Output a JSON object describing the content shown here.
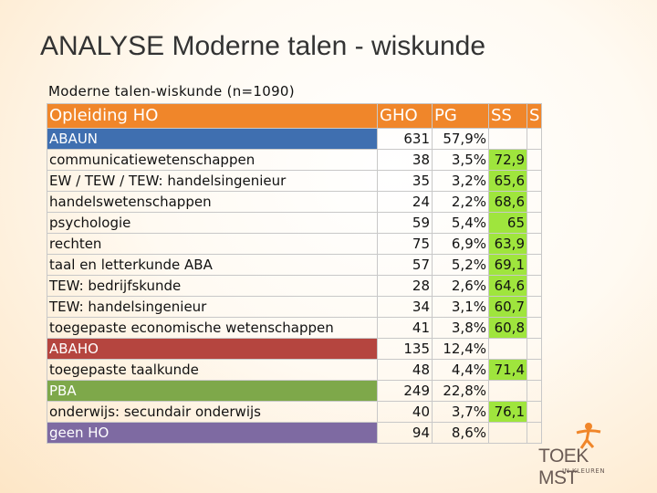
{
  "slide": {
    "title": "ANALYSE Moderne talen - wiskunde"
  },
  "table": {
    "caption": "Moderne talen-wiskunde (n=1090)",
    "headers": [
      "Opleiding HO",
      "GHO",
      "PG",
      "SS",
      "S"
    ],
    "rows": [
      {
        "label": "ABAUN",
        "gho": "631",
        "pg": "57,9%",
        "ss": "",
        "category": "blue"
      },
      {
        "label": "communicatiewetenschappen",
        "gho": "38",
        "pg": "3,5%",
        "ss": "72,9",
        "category": ""
      },
      {
        "label": "EW / TEW / TEW: handelsingenieur",
        "gho": "35",
        "pg": "3,2%",
        "ss": "65,6",
        "category": ""
      },
      {
        "label": "handelswetenschappen",
        "gho": "24",
        "pg": "2,2%",
        "ss": "68,6",
        "category": ""
      },
      {
        "label": "psychologie",
        "gho": "59",
        "pg": "5,4%",
        "ss": "65",
        "category": ""
      },
      {
        "label": "rechten",
        "gho": "75",
        "pg": "6,9%",
        "ss": "63,9",
        "category": ""
      },
      {
        "label": "taal en letterkunde ABA",
        "gho": "57",
        "pg": "5,2%",
        "ss": "69,1",
        "category": ""
      },
      {
        "label": "TEW: bedrijfskunde",
        "gho": "28",
        "pg": "2,6%",
        "ss": "64,6",
        "category": ""
      },
      {
        "label": "TEW: handelsingenieur",
        "gho": "34",
        "pg": "3,1%",
        "ss": "60,7",
        "category": ""
      },
      {
        "label": "toegepaste economische wetenschappen",
        "gho": "41",
        "pg": "3,8%",
        "ss": "60,8",
        "category": ""
      },
      {
        "label": "ABAHO",
        "gho": "135",
        "pg": "12,4%",
        "ss": "",
        "category": "red"
      },
      {
        "label": "toegepaste taalkunde",
        "gho": "48",
        "pg": "4,4%",
        "ss": "71,4",
        "category": ""
      },
      {
        "label": "PBA",
        "gho": "249",
        "pg": "22,8%",
        "ss": "",
        "category": "green"
      },
      {
        "label": "onderwijs: secundair onderwijs",
        "gho": "40",
        "pg": "3,7%",
        "ss": "76,1",
        "category": ""
      },
      {
        "label": "geen HO",
        "gho": "94",
        "pg": "8,6%",
        "ss": "",
        "category": "purple"
      }
    ]
  },
  "logo": {
    "main": "TOEK MST",
    "sub": "IN KLEUREN",
    "figure_icon": "person-figure-icon"
  },
  "colors": {
    "header": "#f0862a",
    "ss_fill": "#9fe53d",
    "blue": "#3f6fb0",
    "red": "#b5453f",
    "green": "#7ea84a",
    "purple": "#7e6aa2"
  }
}
